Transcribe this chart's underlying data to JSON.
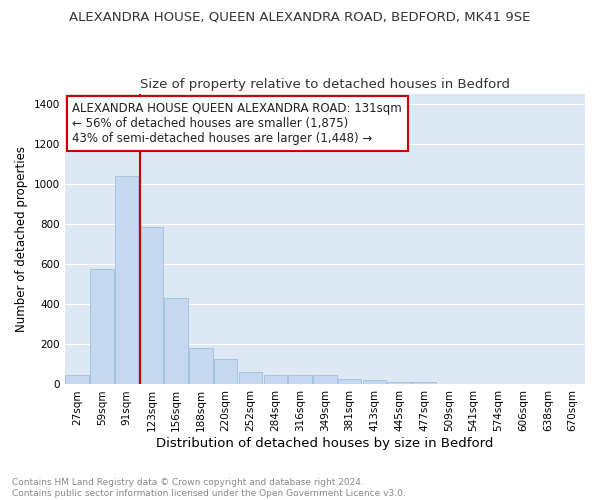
{
  "title": "ALEXANDRA HOUSE, QUEEN ALEXANDRA ROAD, BEDFORD, MK41 9SE",
  "subtitle": "Size of property relative to detached houses in Bedford",
  "xlabel": "Distribution of detached houses by size in Bedford",
  "ylabel": "Number of detached properties",
  "bar_color": "#c5d8ef",
  "bar_edge_color": "#93b8d8",
  "background_color": "#dce9f5",
  "fig_background_color": "#ffffff",
  "categories": [
    "27sqm",
    "59sqm",
    "91sqm",
    "123sqm",
    "156sqm",
    "188sqm",
    "220sqm",
    "252sqm",
    "284sqm",
    "316sqm",
    "349sqm",
    "381sqm",
    "413sqm",
    "445sqm",
    "477sqm",
    "509sqm",
    "541sqm",
    "574sqm",
    "606sqm",
    "638sqm",
    "670sqm"
  ],
  "values": [
    47,
    575,
    1040,
    785,
    430,
    180,
    125,
    62,
    47,
    47,
    47,
    27,
    20,
    13,
    10,
    0,
    0,
    0,
    0,
    0,
    0
  ],
  "vline_x_index": 3,
  "vline_color": "#cc0000",
  "ylim": [
    0,
    1450
  ],
  "yticks": [
    0,
    200,
    400,
    600,
    800,
    1000,
    1200,
    1400
  ],
  "annotation_lines": [
    "ALEXANDRA HOUSE QUEEN ALEXANDRA ROAD: 131sqm",
    "← 56% of detached houses are smaller (1,875)",
    "43% of semi-detached houses are larger (1,448) →"
  ],
  "annotation_box_color": "#ffffff",
  "annotation_box_edge_color": "#cc0000",
  "footnote": "Contains HM Land Registry data © Crown copyright and database right 2024.\nContains public sector information licensed under the Open Government Licence v3.0.",
  "grid_color": "#ffffff",
  "title_fontsize": 9.5,
  "subtitle_fontsize": 9.5,
  "xlabel_fontsize": 9.5,
  "ylabel_fontsize": 8.5,
  "tick_fontsize": 7.5,
  "annotation_fontsize": 8.5,
  "footnote_fontsize": 6.5
}
